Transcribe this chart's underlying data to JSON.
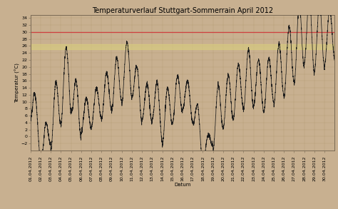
{
  "title": "Temperaturverlauf Stuttgart-Sommerrain April 2012",
  "xlabel": "Datum",
  "ylabel": "Temperatur (°C)",
  "ylim": [
    -4,
    35
  ],
  "yticks": [
    -2,
    0,
    2,
    4,
    6,
    8,
    10,
    12,
    14,
    16,
    18,
    20,
    22,
    24,
    26,
    28,
    30,
    32,
    34
  ],
  "bg_color": "#c8b090",
  "plot_bg_color": "#c8b090",
  "grid_color": "#b09870",
  "line_color": "#1a1a1a",
  "hline_red": 30,
  "hline_red_color": "#d04040",
  "hband_yellow_low": 25,
  "hband_yellow_high": 26.5,
  "hband_yellow_color": "#d8cc80",
  "title_fontsize": 7,
  "axis_fontsize": 5,
  "tick_fontsize": 4.5,
  "date_labels": [
    "01.04.2012",
    "02.04.2012",
    "03.04.2012",
    "04.04.2012",
    "05.04.2012",
    "06.04.2012",
    "07.04.2012",
    "08.04.2012",
    "09.04.2012",
    "10.04.2012",
    "11.04.2012",
    "12.04.2012",
    "13.04.2012",
    "14.04.2012",
    "15.04.2012",
    "16.04.2012",
    "17.04.2012",
    "18.04.2012",
    "19.04.2012",
    "20.04.2012",
    "21.04.2012",
    "22.04.2012",
    "23.04.2012",
    "24.04.2012",
    "25.04.2012",
    "26.04.2012",
    "27.04.2012",
    "28.04.2012",
    "29.04.2012",
    "30.04.2012"
  ]
}
